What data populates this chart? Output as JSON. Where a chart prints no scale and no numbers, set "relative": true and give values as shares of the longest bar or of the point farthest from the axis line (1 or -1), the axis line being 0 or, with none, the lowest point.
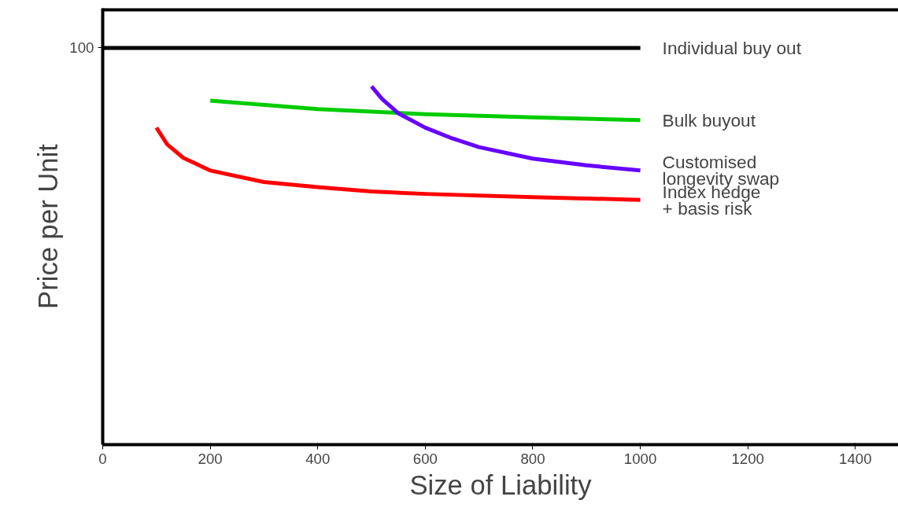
{
  "chart_data": {
    "type": "line",
    "relative": true,
    "xlabel": "Size of Liability",
    "ylabel": "Price per Unit",
    "xlim": [
      0,
      1480
    ],
    "xticks": [
      0,
      200,
      400,
      600,
      800,
      1000,
      1200,
      1400
    ],
    "grid": false,
    "marker": "none",
    "line_style": "solid",
    "annotations": [
      "100"
    ],
    "series": [
      {
        "name": "Individual buy out",
        "color": "#000000",
        "x": [
          0,
          1000
        ],
        "values": [
          1,
          1
        ]
      },
      {
        "name": "Bulk buyout",
        "color": "#00cc00",
        "x": [
          200,
          400,
          600,
          800,
          1000
        ],
        "values": [
          0.867,
          0.846,
          0.833,
          0.825,
          0.818
        ]
      },
      {
        "name": "Customised\n  longevity swap",
        "color": "#6600ff",
        "x": [
          500,
          520,
          550,
          600,
          650,
          700,
          800,
          900,
          1000
        ],
        "values": [
          0.903,
          0.871,
          0.835,
          0.799,
          0.772,
          0.75,
          0.721,
          0.704,
          0.691
        ]
      },
      {
        "name": "Index hedge\n  + basis risk",
        "color": "#ff0000",
        "x": [
          100,
          120,
          150,
          200,
          300,
          400,
          500,
          600,
          800,
          1000
        ],
        "values": [
          0.799,
          0.757,
          0.723,
          0.691,
          0.662,
          0.649,
          0.638,
          0.632,
          0.624,
          0.617
        ]
      }
    ]
  }
}
